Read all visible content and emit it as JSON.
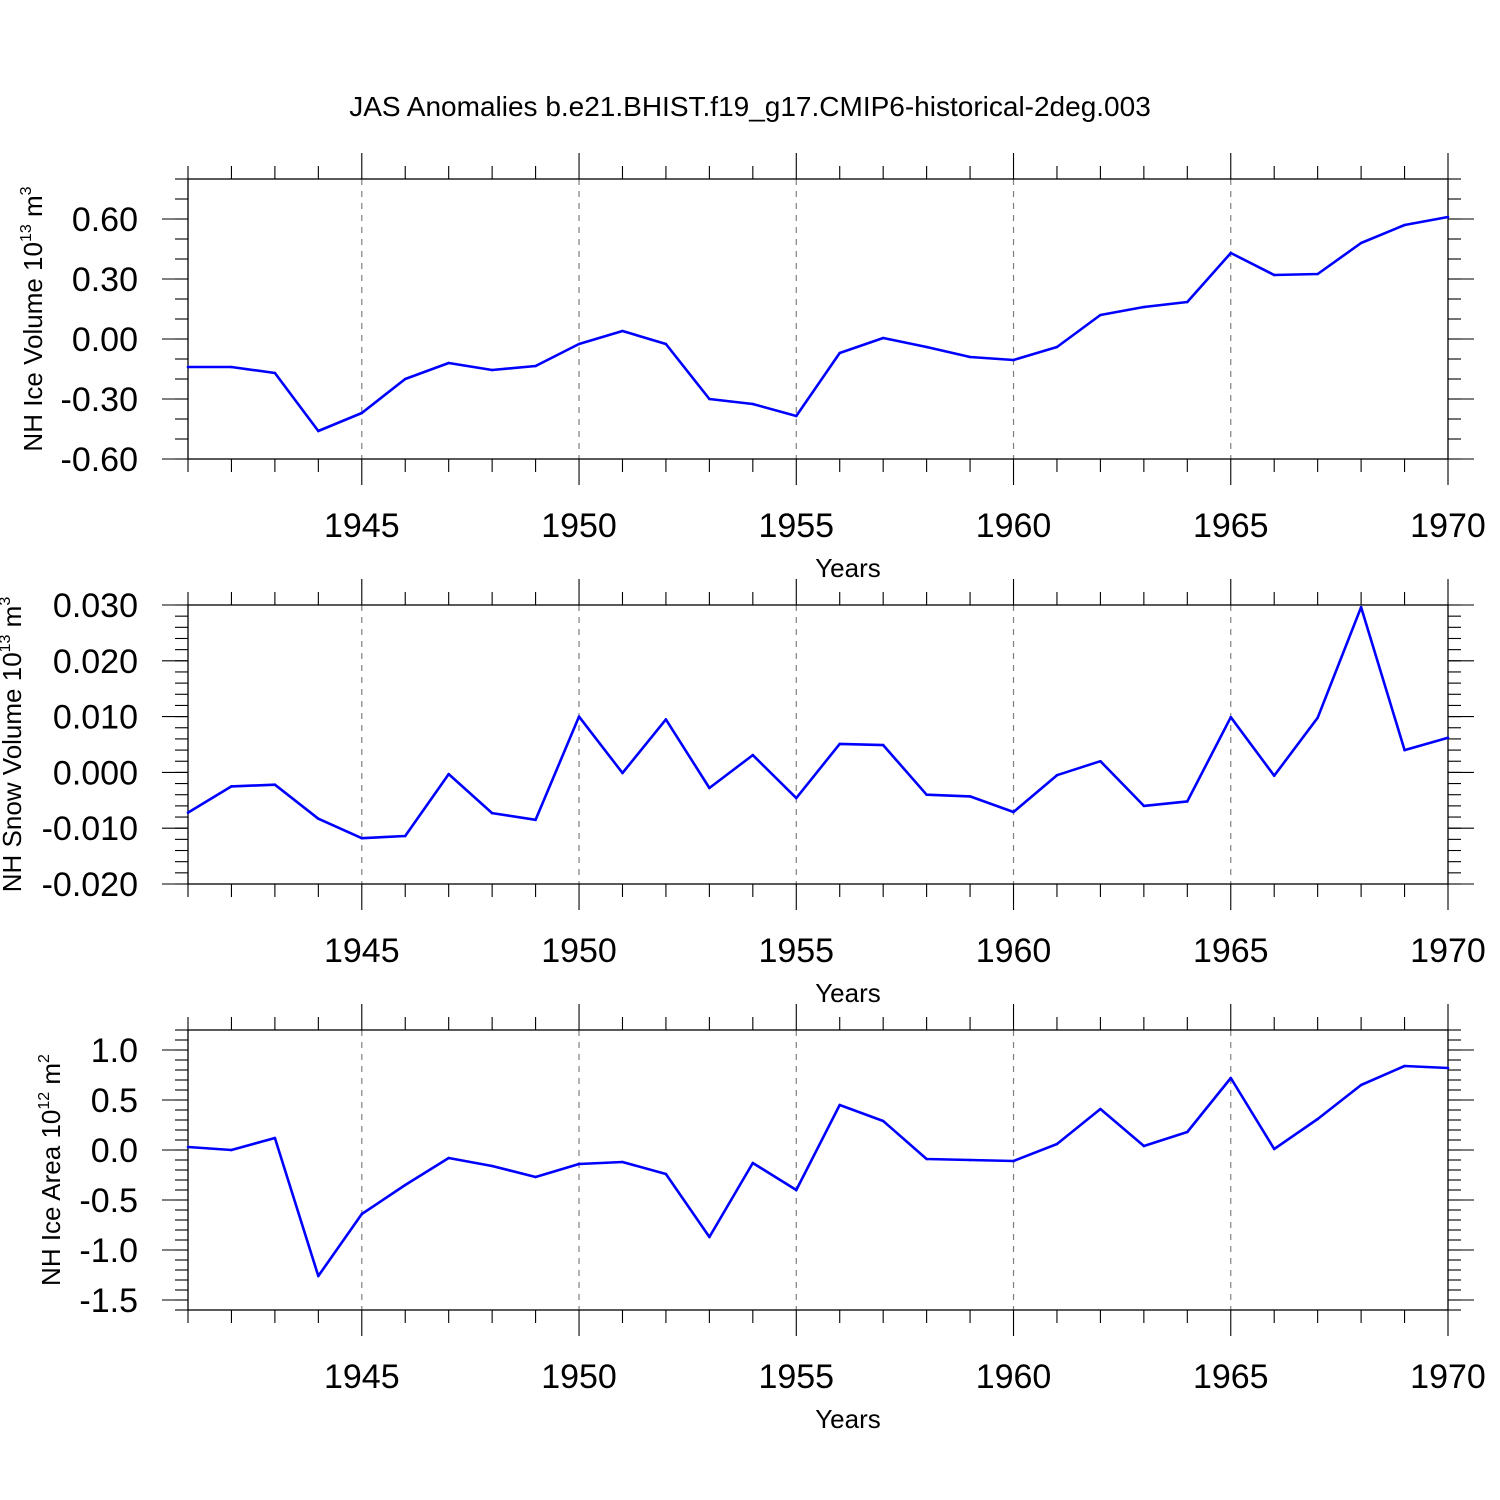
{
  "chart_data": {
    "title": "JAS Anomalies b.e21.BHIST.f19_g17.CMIP6-historical-2deg.003",
    "x": [
      1941,
      1942,
      1943,
      1944,
      1945,
      1946,
      1947,
      1948,
      1949,
      1950,
      1951,
      1952,
      1953,
      1954,
      1955,
      1956,
      1957,
      1958,
      1959,
      1960,
      1961,
      1962,
      1963,
      1964,
      1965,
      1966,
      1967,
      1968,
      1969,
      1970
    ],
    "xlim": [
      1941,
      1970
    ],
    "xticks": [
      "1945",
      "1950",
      "1955",
      "1960",
      "1965",
      "1970"
    ],
    "panels": [
      {
        "type": "line",
        "name": "ice-volume",
        "xlabel": "Years",
        "ylabel_main": "NH Ice Volume 10",
        "ylabel_exp": "13",
        "ylabel_unit": " m",
        "ylabel_unit_exp": "3",
        "ylim": [
          -0.6,
          0.8
        ],
        "yticks": [
          "0.60",
          "0.30",
          "0.00",
          "-0.30",
          "-0.60"
        ],
        "ytick_values": [
          0.6,
          0.3,
          0.0,
          -0.3,
          -0.6
        ],
        "minor_step": 0.1,
        "values": [
          -0.14,
          -0.14,
          -0.17,
          -0.46,
          -0.37,
          -0.2,
          -0.12,
          -0.155,
          -0.135,
          -0.025,
          0.04,
          -0.025,
          -0.3,
          -0.325,
          -0.385,
          -0.07,
          0.005,
          -0.04,
          -0.09,
          -0.105,
          -0.04,
          0.12,
          0.16,
          0.185,
          0.43,
          0.32,
          0.325,
          0.48,
          0.57,
          0.61
        ]
      },
      {
        "type": "line",
        "name": "snow-volume",
        "xlabel": "Years",
        "ylabel_main": "NH Snow Volume 10",
        "ylabel_exp": "13",
        "ylabel_unit": " m",
        "ylabel_unit_exp": "3",
        "ylim": [
          -0.02,
          0.03
        ],
        "yticks": [
          "0.030",
          "0.020",
          "0.010",
          "0.000",
          "-0.010",
          "-0.020"
        ],
        "ytick_values": [
          0.03,
          0.02,
          0.01,
          0.0,
          -0.01,
          -0.02
        ],
        "minor_step": 0.002,
        "values": [
          -0.0072,
          -0.0025,
          -0.0022,
          -0.0083,
          -0.0118,
          -0.0114,
          -0.0003,
          -0.0073,
          -0.0085,
          0.01,
          -0.0001,
          0.0095,
          -0.0028,
          0.0031,
          -0.0046,
          0.0051,
          0.0049,
          -0.004,
          -0.0043,
          -0.0071,
          -0.0005,
          0.002,
          -0.006,
          -0.0052,
          0.0099,
          -0.0006,
          0.0098,
          0.0296,
          0.004,
          0.0062
        ]
      },
      {
        "type": "line",
        "name": "ice-area",
        "xlabel": "Years",
        "ylabel_main": "NH Ice Area 10",
        "ylabel_exp": "12",
        "ylabel_unit": " m",
        "ylabel_unit_exp": "2",
        "ylim": [
          -1.6,
          1.2
        ],
        "yticks": [
          "1.0",
          "0.5",
          "0.0",
          "-0.5",
          "-1.0",
          "-1.5"
        ],
        "ytick_values": [
          1.0,
          0.5,
          0.0,
          -0.5,
          -1.0,
          -1.5
        ],
        "minor_step": 0.1,
        "values": [
          0.03,
          0.0,
          0.12,
          -1.26,
          -0.64,
          -0.35,
          -0.08,
          -0.16,
          -0.27,
          -0.14,
          -0.12,
          -0.24,
          -0.87,
          -0.13,
          -0.4,
          0.45,
          0.29,
          -0.09,
          -0.1,
          -0.11,
          0.06,
          0.41,
          0.04,
          0.18,
          0.72,
          0.01,
          0.31,
          0.65,
          0.84,
          0.82
        ]
      }
    ],
    "line_color": "#0000ff",
    "grid": "dashed vertical lines at labeled years"
  }
}
